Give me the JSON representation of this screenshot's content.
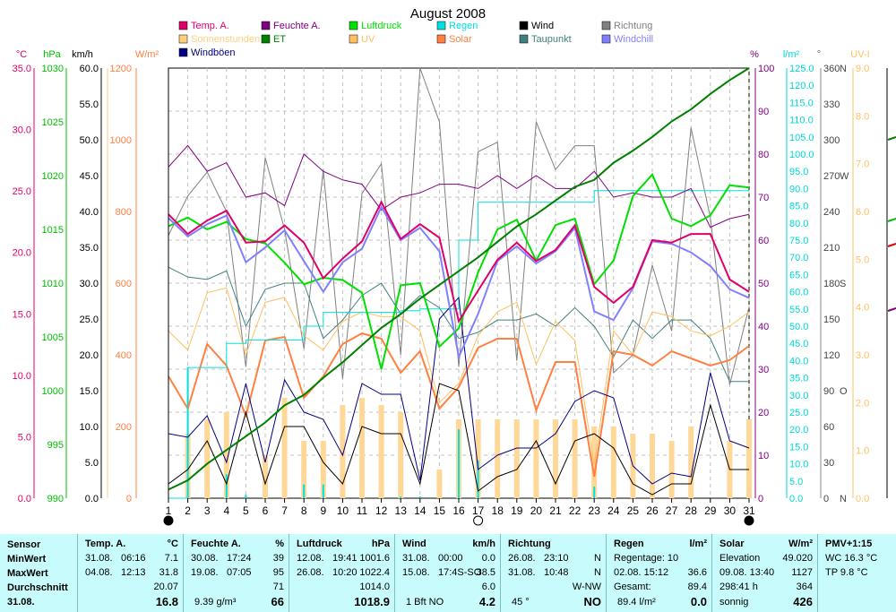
{
  "chart_data": {
    "type": "line",
    "title": "August 2008",
    "x": [
      1,
      2,
      3,
      4,
      5,
      6,
      7,
      8,
      9,
      10,
      11,
      12,
      13,
      14,
      15,
      16,
      17,
      18,
      19,
      20,
      21,
      22,
      23,
      24,
      25,
      26,
      27,
      28,
      29,
      30,
      31
    ],
    "xticks": [
      "1",
      "2",
      "3",
      "4",
      "5",
      "6",
      "7",
      "8",
      "9",
      "10",
      "11",
      "12",
      "13",
      "14",
      "15",
      "16",
      "17",
      "18",
      "19",
      "20",
      "21",
      "22",
      "23",
      "24",
      "25",
      "26",
      "27",
      "28",
      "29",
      "30",
      "31"
    ],
    "axes": {
      "temp": {
        "label": "°C",
        "range": [
          0,
          35
        ],
        "ticks": [
          "0.0",
          "5.0",
          "10.0",
          "15.0",
          "20.0",
          "25.0",
          "30.0",
          "35.0"
        ],
        "color": "#e0006a"
      },
      "press": {
        "label": "hPa",
        "range": [
          990,
          1030
        ],
        "ticks": [
          "990",
          "995",
          "1000",
          "1005",
          "1010",
          "1015",
          "1020",
          "1025",
          "1030"
        ],
        "color": "#00c000"
      },
      "wind": {
        "label": "km/h",
        "range": [
          0,
          60
        ],
        "ticks": [
          "0.0",
          "5.0",
          "10.0",
          "15.0",
          "20.0",
          "25.0",
          "30.0",
          "35.0",
          "40.0",
          "45.0",
          "50.0",
          "55.0",
          "60.0"
        ],
        "color": "#000000"
      },
      "solar": {
        "label": "W/m²",
        "range": [
          0,
          1200
        ],
        "ticks": [
          "0",
          "200",
          "400",
          "600",
          "800",
          "1000",
          "1200"
        ],
        "color": "#ff8040"
      },
      "humidity": {
        "label": "%",
        "range": [
          0,
          100
        ],
        "ticks": [
          "0",
          "10",
          "20",
          "30",
          "40",
          "50",
          "60",
          "70",
          "80",
          "90",
          "100"
        ],
        "color": "#800080"
      },
      "rain": {
        "label": "l/m²",
        "range": [
          0,
          125
        ],
        "ticks": [
          "0.0",
          "5.0",
          "10.0",
          "15.0",
          "20.0",
          "25.0",
          "30.0",
          "35.0",
          "40.0",
          "45.0",
          "50.0",
          "55.0",
          "60.0",
          "65.0",
          "70.0",
          "75.0",
          "80.0",
          "85.0",
          "90.0",
          "95.0",
          "100.0",
          "105.0",
          "110.0",
          "115.0",
          "120.0",
          "125.0"
        ],
        "color": "#00d8d8"
      },
      "dir": {
        "label": "°",
        "range": [
          0,
          360
        ],
        "ticks": [
          "0",
          "N",
          "30",
          "60",
          "90",
          "O",
          "120",
          "150",
          "180",
          "S",
          "210",
          "240",
          "270",
          "W",
          "300",
          "330",
          "360",
          "N"
        ]
      },
      "uv": {
        "label": "UV-I",
        "range": [
          0,
          9
        ],
        "ticks": [
          "0.0",
          "1.0",
          "2.0",
          "3.0",
          "4.0",
          "5.0",
          "6.0",
          "7.0",
          "8.0",
          "9.0"
        ],
        "color": "#ffc060"
      }
    },
    "legend": [
      {
        "name": "Temp. A.",
        "color": "#e0006a"
      },
      {
        "name": "Feuchte A.",
        "color": "#800080"
      },
      {
        "name": "Luftdruck",
        "color": "#00e000"
      },
      {
        "name": "Regen",
        "color": "#00e0e0"
      },
      {
        "name": "Wind",
        "color": "#000000"
      },
      {
        "name": "Richtung",
        "color": "#808080"
      },
      {
        "name": "Sonnenstunden",
        "color": "#ffd080"
      },
      {
        "name": "ET",
        "color": "#008000"
      },
      {
        "name": "UV",
        "color": "#ffc060"
      },
      {
        "name": "Solar",
        "color": "#ff8040"
      },
      {
        "name": "Taupunkt",
        "color": "#408080"
      },
      {
        "name": "Windchill",
        "color": "#8080ff"
      },
      {
        "name": "Windböen",
        "color": "#000080"
      }
    ],
    "series": [
      {
        "name": "Temp. A.",
        "axis": "temp",
        "color": "#e0006a",
        "width": 2,
        "values": [
          23.1,
          21.5,
          22.6,
          23.4,
          20.8,
          20.9,
          22.2,
          20.8,
          17.9,
          19.5,
          20.9,
          24.1,
          21.1,
          22.3,
          21.2,
          14.4,
          16.9,
          19.4,
          20.8,
          19.3,
          20.2,
          22.2,
          17.2,
          15.9,
          17.2,
          21.0,
          20.8,
          21.5,
          21.5,
          17.8,
          16.8
        ]
      },
      {
        "name": "Feuchte A.",
        "axis": "humidity",
        "color": "#800080",
        "width": 1,
        "values": [
          77,
          82,
          76,
          78,
          70,
          71,
          68,
          80,
          76,
          74,
          73,
          67,
          70,
          71,
          73,
          73,
          72,
          75,
          72,
          75,
          72,
          72,
          76,
          70,
          71,
          70,
          70,
          72,
          63,
          65,
          66
        ]
      },
      {
        "name": "Luftdruck",
        "axis": "press",
        "color": "#00e000",
        "width": 2,
        "values": [
          1015.3,
          1016.1,
          1015.0,
          1015.7,
          1014.1,
          1013.7,
          1011.9,
          1009.9,
          1010.5,
          1010.3,
          1009.1,
          1002.0,
          1009.8,
          1010.0,
          1004.1,
          1005.8,
          1011.0,
          1015.0,
          1015.9,
          1012.1,
          1015.4,
          1016.0,
          1009.9,
          1012.1,
          1018.1,
          1020.1,
          1016.0,
          1015.3,
          1016.3,
          1019.1,
          1018.9
        ]
      },
      {
        "name": "Regen",
        "axis": "rain",
        "color": "#00e0e0",
        "width": 1,
        "step": true,
        "values": [
          0.0,
          38.0,
          38.0,
          45.0,
          46.0,
          46.0,
          46.0,
          50.0,
          54.0,
          54.0,
          54.0,
          54.0,
          54.5,
          55.0,
          55.0,
          75.0,
          86.0,
          86.0,
          86.0,
          86.0,
          86.0,
          86.0,
          89.4,
          89.4,
          89.4,
          89.4,
          89.4,
          89.4,
          89.4,
          89.4,
          89.4
        ]
      },
      {
        "name": "Wind",
        "axis": "wind",
        "color": "#000000",
        "width": 1,
        "values": [
          2.0,
          4.0,
          8.0,
          2.0,
          12.0,
          2.0,
          10.0,
          10.0,
          5.0,
          2.0,
          10.0,
          9.0,
          9.0,
          2.0,
          16.0,
          15.0,
          1.0,
          3.0,
          4.0,
          8.0,
          2.0,
          8.0,
          9.0,
          7.0,
          2.0,
          0.5,
          2.0,
          2.0,
          13.0,
          4.0,
          4.0
        ]
      },
      {
        "name": "Windböen",
        "axis": "wind",
        "color": "#000080",
        "width": 1,
        "values": [
          9.0,
          8.5,
          11.5,
          5.0,
          16.0,
          5.0,
          16.5,
          12.0,
          11.0,
          6.0,
          16.0,
          14.5,
          14.5,
          2.5,
          25.0,
          28.0,
          4.0,
          6.0,
          7.0,
          7.0,
          9.0,
          13.5,
          15.0,
          14.0,
          4.5,
          2.0,
          3.5,
          3.0,
          17.5,
          8.0,
          7.0
        ]
      },
      {
        "name": "Richtung",
        "axis": "dir",
        "color": "#808080",
        "width": 1,
        "values": [
          220,
          253,
          273,
          240,
          110,
          285,
          225,
          125,
          275,
          100,
          255,
          280,
          120,
          360,
          315,
          110,
          290,
          298,
          115,
          315,
          275,
          295,
          295,
          105,
          120,
          195,
          140,
          310,
          235,
          95,
          160
        ]
      },
      {
        "name": "Taupunkt",
        "axis": "temp",
        "color": "#408080",
        "width": 1,
        "values": [
          18.8,
          18.0,
          17.8,
          18.5,
          14.0,
          17.0,
          17.5,
          17.5,
          13.0,
          14.5,
          16.5,
          17.5,
          15.0,
          16.5,
          15.5,
          13.0,
          13.5,
          14.5,
          14.5,
          15.0,
          14.0,
          15.5,
          14.0,
          11.5,
          14.5,
          13.0,
          14.5,
          14.5,
          13.0,
          9.5,
          9.5
        ]
      },
      {
        "name": "Windchill",
        "axis": "temp",
        "color": "#8080ff",
        "width": 2,
        "values": [
          22.8,
          21.3,
          22.3,
          23.0,
          19.2,
          20.4,
          21.8,
          19.3,
          16.8,
          19.2,
          20.3,
          23.7,
          21.0,
          22.0,
          20.1,
          11.5,
          15.0,
          19.3,
          20.5,
          19.1,
          20.1,
          22.0,
          15.2,
          14.5,
          17.1,
          20.9,
          20.7,
          20.0,
          18.9,
          17.0,
          16.3
        ]
      },
      {
        "name": "ET",
        "axis": "rain",
        "color": "#008000",
        "width": 2,
        "values": [
          2.5,
          5.2,
          10.0,
          14.0,
          18.0,
          22.0,
          27.0,
          30.0,
          35.0,
          39.5,
          44.5,
          49.5,
          53.5,
          58.0,
          62.0,
          66.0,
          70.0,
          74.5,
          79.0,
          82.5,
          86.5,
          90.5,
          92.5,
          97.5,
          101.0,
          105.0,
          109.5,
          113.0,
          117.5,
          121.5,
          125.0
        ]
      },
      {
        "name": "Solar",
        "axis": "solar",
        "color": "#ff8040",
        "width": 2,
        "values": [
          340,
          250,
          430,
          370,
          230,
          440,
          450,
          280,
          340,
          430,
          460,
          445,
          350,
          410,
          250,
          310,
          420,
          445,
          445,
          245,
          380,
          380,
          60,
          410,
          400,
          370,
          410,
          390,
          370,
          385,
          425
        ]
      },
      {
        "name": "UV",
        "axis": "uv",
        "color": "#ffc060",
        "width": 1,
        "values": [
          3.5,
          3.1,
          4.3,
          4.4,
          3.0,
          4.1,
          4.2,
          3.4,
          3.1,
          3.7,
          3.9,
          3.8,
          3.8,
          3.5,
          2.0,
          2.4,
          3.4,
          3.9,
          4.1,
          2.8,
          3.7,
          3.3,
          0.7,
          3.5,
          3.0,
          3.9,
          3.8,
          3.5,
          3.4,
          3.6,
          3.9
        ]
      }
    ],
    "bars": {
      "name": "Sonnenstunden",
      "axis": "wind",
      "color": "#ffd898",
      "values": [
        0,
        9,
        11,
        12,
        0,
        6,
        14,
        8,
        8,
        13,
        14,
        13,
        12,
        0,
        4,
        11,
        11,
        11,
        11,
        11,
        11,
        11,
        10,
        10,
        9,
        9,
        8,
        10,
        0,
        8,
        11
      ]
    },
    "rain_bars": {
      "name": "Regen",
      "axis": "rain",
      "color": "#00e0e0",
      "values": [
        0,
        38.0,
        0,
        7.0,
        1.0,
        0,
        0,
        4.0,
        4.0,
        0,
        0,
        0,
        0.5,
        0.5,
        0,
        20.0,
        11.0,
        0,
        0,
        0,
        0,
        0,
        3.4,
        0,
        0,
        0,
        0,
        0,
        0,
        0,
        0
      ]
    },
    "moon": [
      {
        "x": 1,
        "phase": "new"
      },
      {
        "x": 17,
        "phase": "full"
      },
      {
        "x": 31,
        "phase": "new"
      }
    ]
  },
  "stats": {
    "sensor": {
      "header": "Sensor",
      "rows": [
        "MinWert",
        "MaxWert",
        "Durchschnitt",
        "31.08."
      ]
    },
    "temp": {
      "header": "Temp. A.",
      "unit": "°C",
      "min": {
        "date": "31.08.",
        "time": "06:16",
        "value": "7.1"
      },
      "max": {
        "date": "04.08.",
        "time": "12:13",
        "value": "31.8"
      },
      "avg": "20.07",
      "current": "16.8"
    },
    "humidity": {
      "header": "Feuchte A.",
      "unit": "%",
      "min": {
        "date": "30.08.",
        "time": "17:24",
        "value": "39"
      },
      "max": {
        "date": "19.08.",
        "time": "07:05",
        "value": "95"
      },
      "avg": "71",
      "extra": "9.39 g/m³",
      "current": "66"
    },
    "pressure": {
      "header": "Luftdruck",
      "unit": "hPa",
      "min": {
        "date": "12.08.",
        "time": "19:41",
        "value": "1001.6"
      },
      "max": {
        "date": "26.08.",
        "time": "10:20",
        "value": "1022.4"
      },
      "avg": "1014.0",
      "current": "1018.9"
    },
    "wind": {
      "header": "Wind",
      "unit": "km/h",
      "min": {
        "date": "31.08.",
        "time": "00:00",
        "value": "0.0"
      },
      "max": {
        "date": "15.08.",
        "time": "17:4S-SO",
        "value": "38.5"
      },
      "avg": "6.0",
      "extra": "1 Bft NO",
      "current": "4.2"
    },
    "direction": {
      "header": "Richtung",
      "min": {
        "date": "26.08.",
        "time": "23:10",
        "value": "N"
      },
      "max": {
        "date": "31.08.",
        "time": "10:48",
        "value": "N"
      },
      "avg": "W-NW",
      "extra": "45 °",
      "current": "NO"
    },
    "rain": {
      "header": "Regen",
      "unit": "l/m²",
      "row1": {
        "label": "Regentage: 10"
      },
      "row2": {
        "label": "02.08.  15:12",
        "value": "36.6"
      },
      "row3": {
        "label": "Gesamt:",
        "value": "89.4"
      },
      "extra": "89.4 l/m²",
      "current": "0.0"
    },
    "solar": {
      "header": "Solar",
      "unit": "W/m²",
      "row1": {
        "label": "Elevation",
        "value": "49.020"
      },
      "row2": {
        "label": "09.08.  13:40",
        "value": "1127"
      },
      "row3": {
        "label": "298:41 h",
        "value": "364"
      },
      "extra": "sonnig",
      "current": "426"
    },
    "pmv": {
      "header": "PMV+1:15",
      "row1": "WC 16.3 °C",
      "row2": "TP 9.8 °C"
    }
  }
}
